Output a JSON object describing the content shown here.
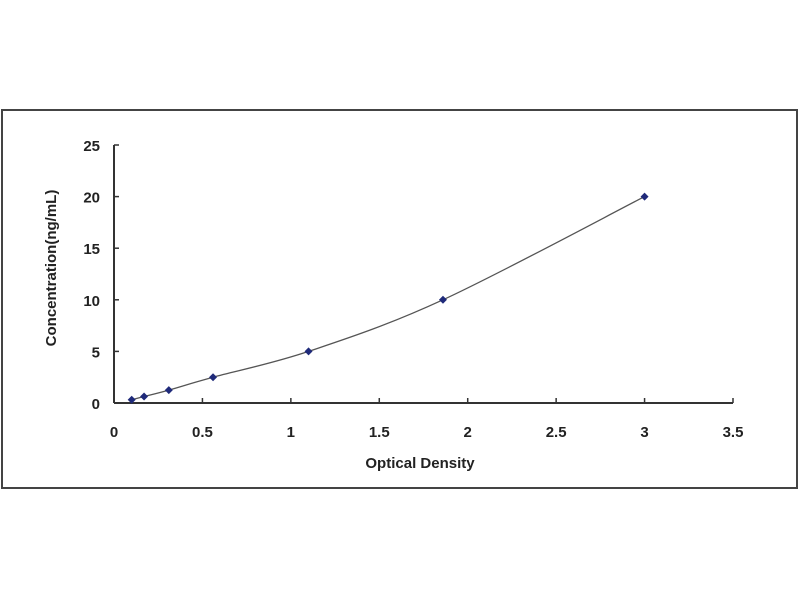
{
  "chart_data": {
    "type": "scatter",
    "title": "",
    "xlabel": "Optical Density",
    "ylabel": "Concentration(ng/mL)",
    "xlim": [
      0,
      3.5
    ],
    "ylim": [
      0,
      25
    ],
    "xticks": [
      "0",
      "0.5",
      "1",
      "1.5",
      "2",
      "2.5",
      "3",
      "3.5"
    ],
    "yticks": [
      "0",
      "5",
      "10",
      "15",
      "20",
      "25"
    ],
    "grid": false,
    "legend": "none",
    "series": [
      {
        "x": [
          0.1,
          0.17,
          0.31,
          0.56,
          1.1,
          1.86,
          3.0
        ],
        "y": [
          0.31,
          0.625,
          1.25,
          2.5,
          5,
          10,
          20
        ],
        "marker": "diamond",
        "fit_line": "smooth curve"
      }
    ],
    "colors": {
      "marker": "#1f2a7a",
      "line": "#555555",
      "axis": "#333333",
      "frame": "#444444"
    }
  }
}
